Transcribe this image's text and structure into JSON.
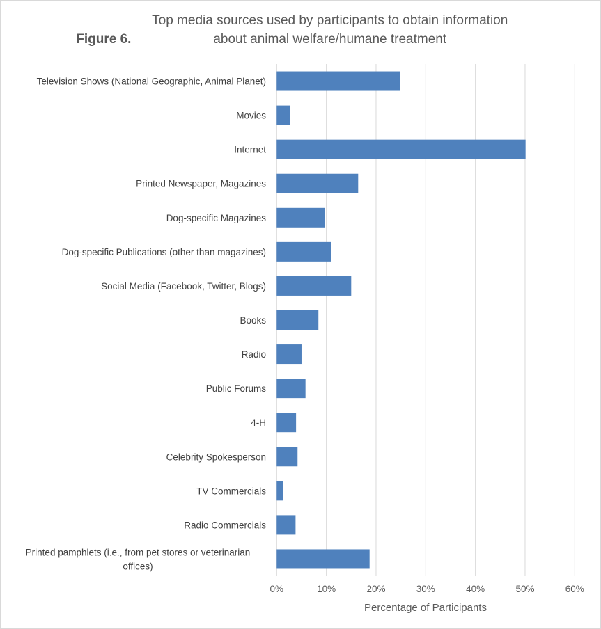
{
  "chart_data": {
    "type": "bar",
    "orientation": "horizontal",
    "title_prefix": "Figure 6.",
    "title": "Top media sources used by participants to obtain information about animal welfare/humane treatment",
    "xlabel": "Percentage of Participants",
    "ylabel": "",
    "xlim": [
      0,
      60
    ],
    "x_ticks": [
      "0%",
      "10%",
      "20%",
      "30%",
      "40%",
      "50%",
      "60%"
    ],
    "grid": true,
    "bar_color": "#4f81bd",
    "categories": [
      "Television Shows (National Geographic, Animal Planet)",
      "Movies",
      "Internet",
      "Printed Newspaper, Magazines",
      "Dog-specific Magazines",
      "Dog-specific Publications (other than magazines)",
      "Social Media (Facebook, Twitter, Blogs)",
      "Books",
      "Radio",
      "Public Forums",
      "4-H",
      "Celebrity Spokesperson",
      "TV Commercials",
      "Radio Commercials",
      "Printed pamphlets (i.e., from pet stores or veterinarian offices)"
    ],
    "category_lines": {
      "14": [
        "Printed pamphlets (i.e., from pet stores or veterinarian",
        "offices)"
      ]
    },
    "values": [
      24.8,
      2.7,
      50.1,
      16.4,
      9.7,
      10.9,
      15.0,
      8.4,
      5.0,
      5.8,
      3.9,
      4.2,
      1.3,
      3.8,
      18.7
    ]
  }
}
